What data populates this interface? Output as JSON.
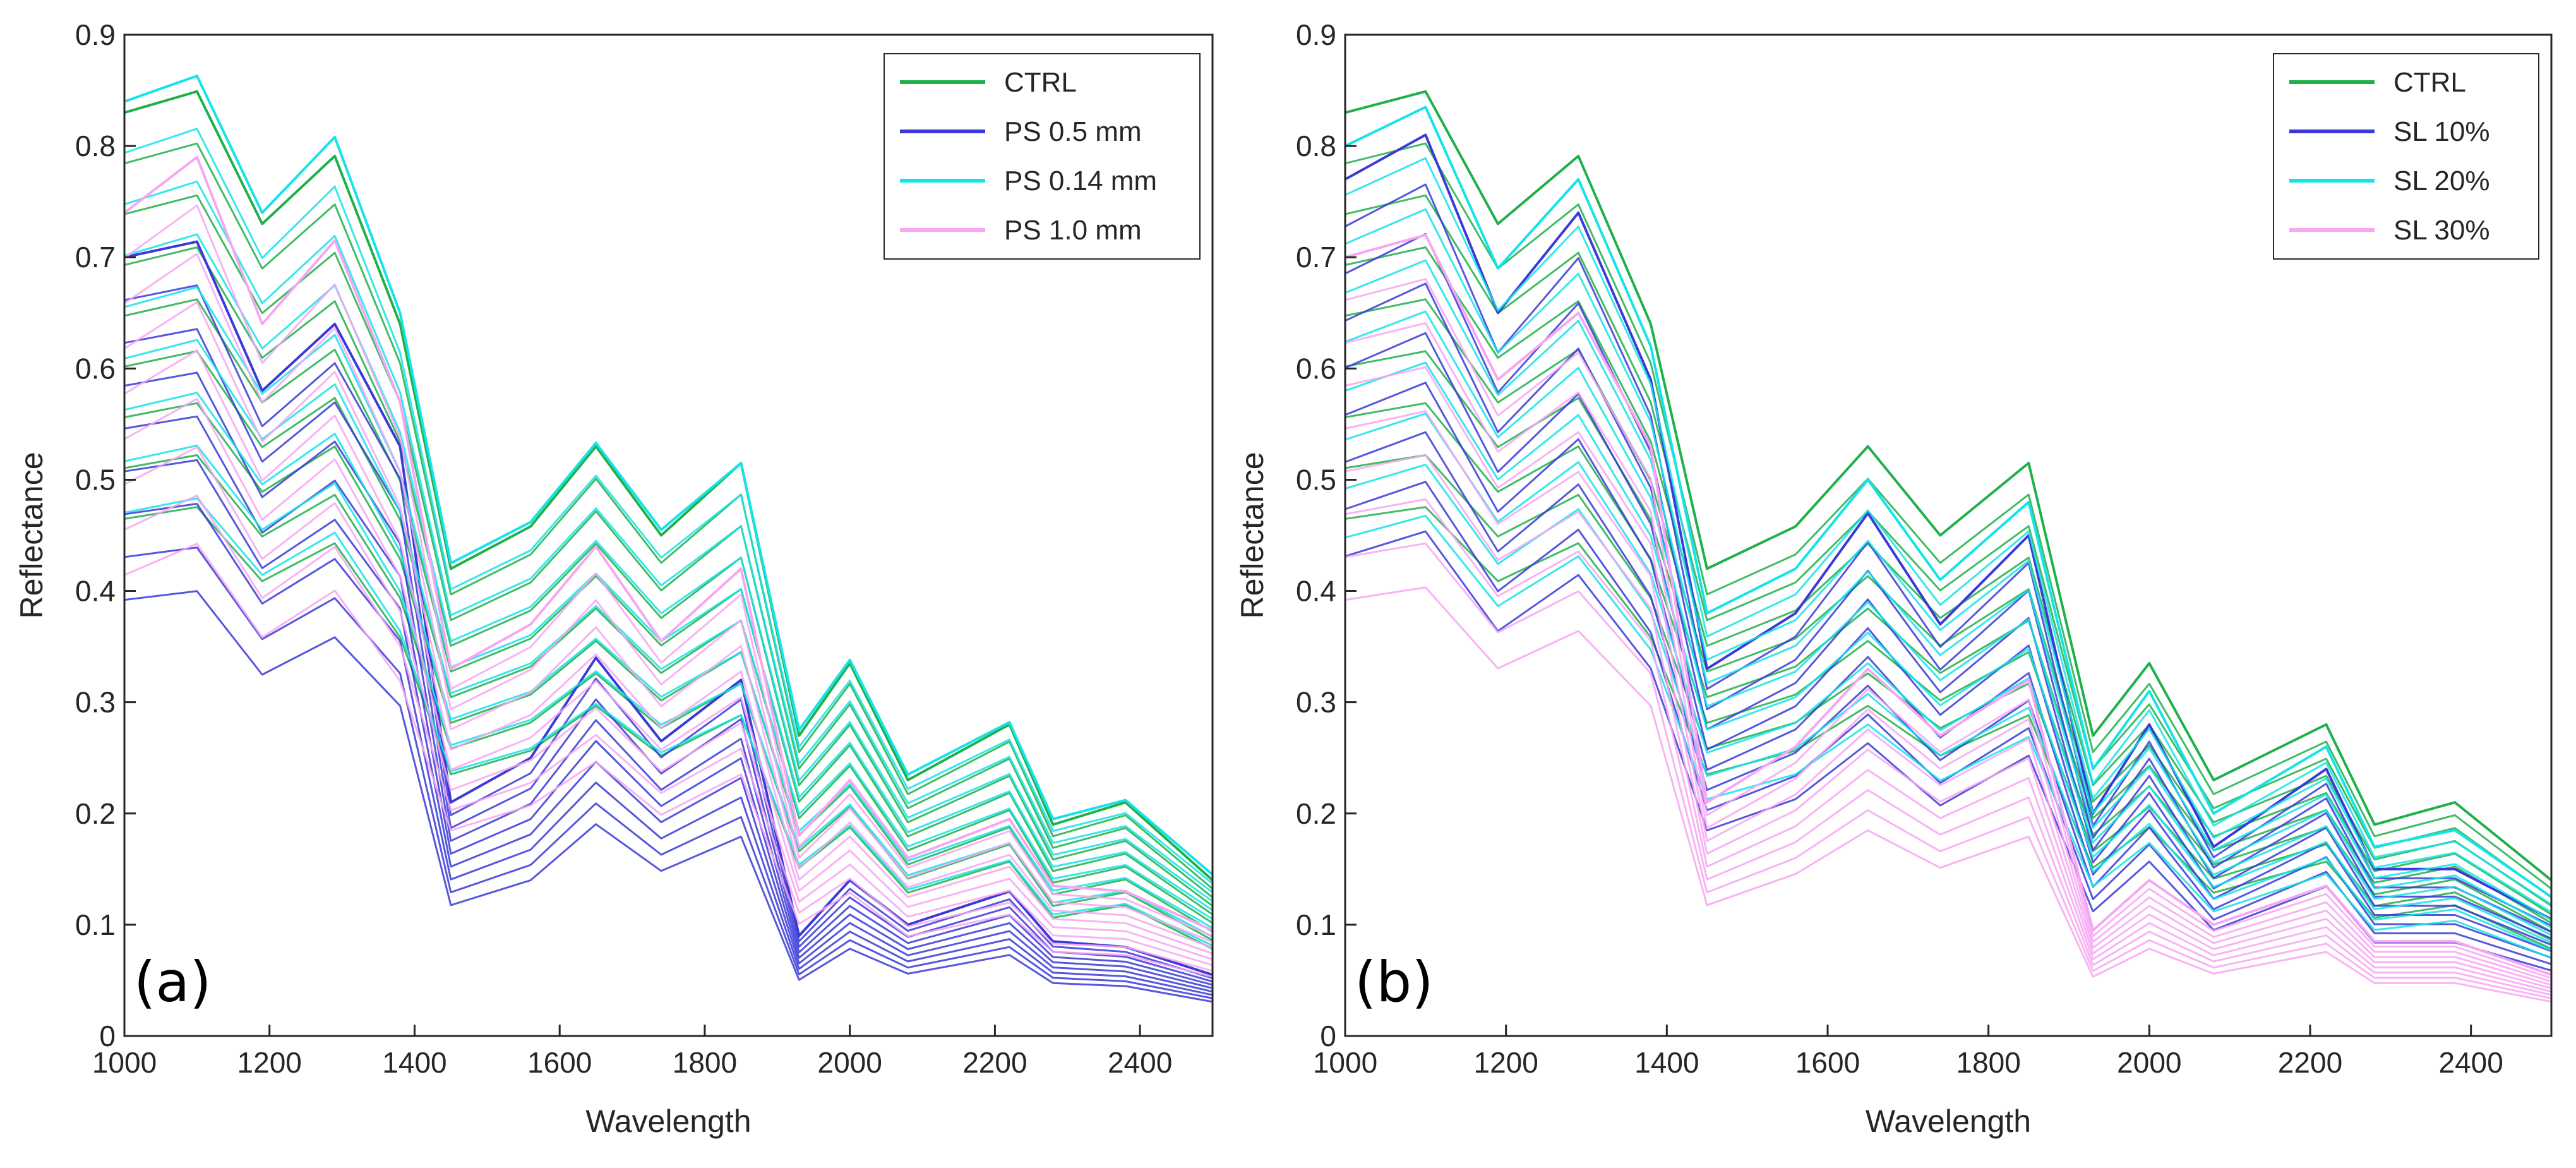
{
  "chart_data": [
    {
      "type": "line",
      "panel_label": "(a)",
      "xlabel": "Wavelength",
      "ylabel": "Reflectance",
      "xlim": [
        1000,
        2500
      ],
      "ylim": [
        0,
        0.9
      ],
      "xticks": [
        1000,
        1200,
        1400,
        1600,
        1800,
        2000,
        2200,
        2400
      ],
      "xtick_labels": [
        "1000",
        "1200",
        "1400",
        "1600",
        "1800",
        "2000",
        "2200",
        "2400"
      ],
      "yticks": [
        0,
        0.1,
        0.2,
        0.3,
        0.4,
        0.5,
        0.6,
        0.7,
        0.8,
        0.9
      ],
      "ytick_labels": [
        "0",
        "0.1",
        "0.2",
        "0.3",
        "0.4",
        "0.5",
        "0.6",
        "0.7",
        "0.8",
        "0.9"
      ],
      "grid": false,
      "legend_position": "top-right",
      "series": [
        {
          "name": "CTRL",
          "color": "#1fb04a",
          "values": [
            0.83,
            0.849,
            0.73,
            0.791,
            0.64,
            0.42,
            0.458,
            0.53,
            0.45,
            0.515,
            0.27,
            0.335,
            0.23,
            0.28,
            0.19,
            0.21,
            0.14
          ]
        },
        {
          "name": "PS 0.5 mm",
          "color": "#3a3ad8",
          "values": [
            0.7,
            0.714,
            0.58,
            0.64,
            0.53,
            0.21,
            0.25,
            0.34,
            0.265,
            0.32,
            0.09,
            0.14,
            0.1,
            0.13,
            0.085,
            0.08,
            0.055
          ]
        },
        {
          "name": "PS 0.14 mm",
          "color": "#14e3e8",
          "values": [
            0.84,
            0.863,
            0.74,
            0.808,
            0.65,
            0.425,
            0.462,
            0.533,
            0.455,
            0.515,
            0.275,
            0.338,
            0.235,
            0.282,
            0.195,
            0.212,
            0.145
          ]
        },
        {
          "name": "PS 1.0 mm",
          "color": "#f7a6f2",
          "values": [
            0.74,
            0.79,
            0.64,
            0.715,
            0.57,
            0.33,
            0.37,
            0.44,
            0.355,
            0.42,
            0.18,
            0.23,
            0.16,
            0.195,
            0.135,
            0.13,
            0.095
          ]
        }
      ],
      "x": [
        1000,
        1100,
        1190,
        1290,
        1380,
        1450,
        1560,
        1650,
        1740,
        1850,
        1930,
        2000,
        2080,
        2220,
        2280,
        2380,
        2500
      ]
    },
    {
      "type": "line",
      "panel_label": "(b)",
      "xlabel": "Wavelength",
      "ylabel": "Reflectance",
      "xlim": [
        1000,
        2500
      ],
      "ylim": [
        0,
        0.9
      ],
      "xticks": [
        1000,
        1200,
        1400,
        1600,
        1800,
        2000,
        2200,
        2400
      ],
      "xtick_labels": [
        "1000",
        "1200",
        "1400",
        "1600",
        "1800",
        "2000",
        "2200",
        "2400"
      ],
      "yticks": [
        0,
        0.1,
        0.2,
        0.3,
        0.4,
        0.5,
        0.6,
        0.7,
        0.8,
        0.9
      ],
      "ytick_labels": [
        "0",
        "0.1",
        "0.2",
        "0.3",
        "0.4",
        "0.5",
        "0.6",
        "0.7",
        "0.8",
        "0.9"
      ],
      "grid": false,
      "legend_position": "top-right",
      "series": [
        {
          "name": "CTRL",
          "color": "#1fb04a",
          "values": [
            0.83,
            0.849,
            0.73,
            0.791,
            0.64,
            0.42,
            0.458,
            0.53,
            0.45,
            0.515,
            0.27,
            0.335,
            0.23,
            0.28,
            0.19,
            0.21,
            0.14
          ]
        },
        {
          "name": "SL 10%",
          "color": "#3a3ad8",
          "values": [
            0.77,
            0.81,
            0.65,
            0.74,
            0.59,
            0.33,
            0.38,
            0.47,
            0.37,
            0.45,
            0.2,
            0.28,
            0.17,
            0.24,
            0.15,
            0.15,
            0.105
          ]
        },
        {
          "name": "SL 20%",
          "color": "#14e3e8",
          "values": [
            0.8,
            0.835,
            0.69,
            0.77,
            0.62,
            0.38,
            0.42,
            0.5,
            0.41,
            0.48,
            0.24,
            0.31,
            0.2,
            0.26,
            0.17,
            0.185,
            0.125
          ]
        },
        {
          "name": "SL 30%",
          "color": "#f7a6f2",
          "values": [
            0.7,
            0.72,
            0.59,
            0.65,
            0.53,
            0.21,
            0.26,
            0.33,
            0.27,
            0.32,
            0.095,
            0.14,
            0.1,
            0.135,
            0.085,
            0.085,
            0.055
          ]
        }
      ],
      "x": [
        1000,
        1100,
        1190,
        1290,
        1380,
        1450,
        1560,
        1650,
        1740,
        1850,
        1930,
        2000,
        2080,
        2220,
        2280,
        2380,
        2500
      ]
    }
  ]
}
